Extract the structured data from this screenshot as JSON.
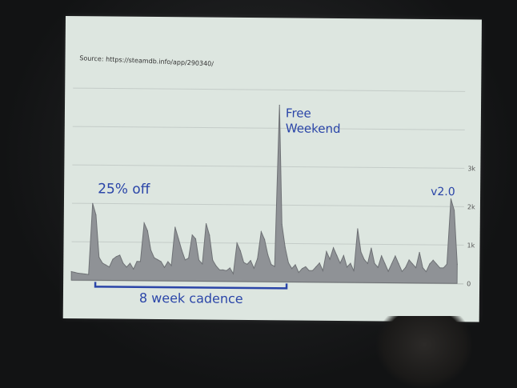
{
  "slide": {
    "source": "Source: https://steamdb.info/app/290340/",
    "annotations": {
      "sale": "25% off",
      "free_weekend": "Free Weekend",
      "version": "v2.0",
      "cadence": "8 week cadence"
    },
    "colors": {
      "annotation": "#2a45a8",
      "area": "#8f9296",
      "slide_bg": "#dde6e0"
    }
  },
  "chart_data": {
    "type": "area",
    "title": "",
    "xlabel": "",
    "ylabel": "",
    "ylim": [
      0,
      5
    ],
    "yticks": [
      "0",
      "1k",
      "2k",
      "3k"
    ],
    "ytick_values": [
      0,
      1,
      2,
      3
    ],
    "grid": true,
    "series": [
      {
        "values": [
          0.22,
          0.2,
          0.18,
          0.17,
          0.16,
          0.15,
          2.0,
          1.7,
          0.6,
          0.45,
          0.4,
          0.35,
          0.55,
          0.62,
          0.66,
          0.45,
          0.35,
          0.45,
          0.3,
          0.5,
          0.5,
          1.5,
          1.3,
          0.8,
          0.6,
          0.55,
          0.5,
          0.35,
          0.5,
          0.4,
          1.4,
          1.1,
          0.8,
          0.55,
          0.6,
          1.2,
          1.1,
          0.55,
          0.45,
          1.5,
          1.2,
          0.55,
          0.4,
          0.3,
          0.3,
          0.28,
          0.35,
          0.2,
          1.0,
          0.8,
          0.5,
          0.45,
          0.55,
          0.35,
          0.6,
          1.3,
          1.1,
          0.7,
          0.45,
          0.4,
          4.6,
          1.5,
          0.9,
          0.5,
          0.35,
          0.45,
          0.25,
          0.35,
          0.4,
          0.3,
          0.3,
          0.4,
          0.5,
          0.3,
          0.8,
          0.6,
          0.9,
          0.7,
          0.5,
          0.7,
          0.4,
          0.5,
          0.3,
          1.4,
          0.8,
          0.6,
          0.5,
          0.9,
          0.5,
          0.4,
          0.7,
          0.5,
          0.3,
          0.5,
          0.7,
          0.5,
          0.3,
          0.4,
          0.6,
          0.5,
          0.4,
          0.8,
          0.4,
          0.3,
          0.5,
          0.6,
          0.5,
          0.4,
          0.4,
          0.5,
          2.2,
          1.9,
          0.5
        ]
      }
    ]
  }
}
